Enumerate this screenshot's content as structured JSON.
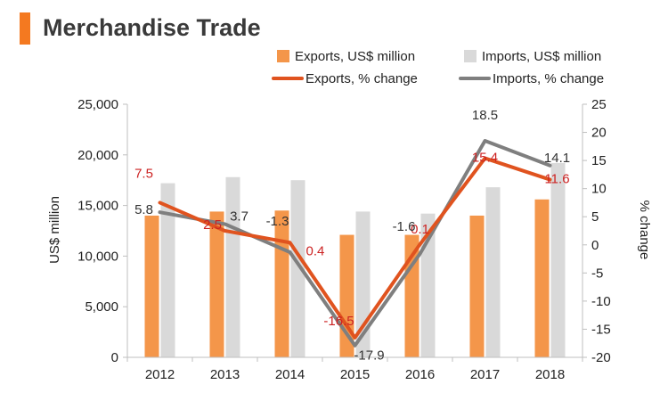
{
  "header": {
    "title": "Merchandise Trade"
  },
  "colors": {
    "accent": "#f47920",
    "exports_bar": "#f4964a",
    "imports_bar": "#d9d9d9",
    "exports_line": "#e0531f",
    "imports_line": "#7f7f7f",
    "exports_label": "#cc2222",
    "imports_label": "#333333",
    "axis": "#bfbfbf"
  },
  "chart_data": {
    "type": "bar",
    "categories": [
      "2012",
      "2013",
      "2014",
      "2015",
      "2016",
      "2017",
      "2018"
    ],
    "series": [
      {
        "name": "Exports, US$ million",
        "type": "bar",
        "axis": "left",
        "values": [
          14000,
          14400,
          14500,
          12100,
          12100,
          14000,
          15600
        ]
      },
      {
        "name": "Imports, US$ million",
        "type": "bar",
        "axis": "left",
        "values": [
          17200,
          17800,
          17500,
          14400,
          14200,
          16800,
          19200
        ]
      },
      {
        "name": "Exports, % change",
        "type": "line",
        "axis": "right",
        "values": [
          7.5,
          2.5,
          0.4,
          -16.5,
          0.1,
          15.4,
          11.6
        ],
        "labels": [
          "7.5",
          "2.5",
          "0.4",
          "-16.5",
          "0.1",
          "15.4",
          "11.6"
        ]
      },
      {
        "name": "Imports, % change",
        "type": "line",
        "axis": "right",
        "values": [
          5.8,
          3.7,
          -1.3,
          -17.9,
          -1.6,
          18.5,
          14.1
        ],
        "labels": [
          "5.8",
          "3.7",
          "-1.3",
          "-17.9",
          "-1.6",
          "18.5",
          "14.1"
        ]
      }
    ],
    "ylabel": "US$ million",
    "y2label": "% change",
    "ylim": [
      0,
      25000
    ],
    "y2lim": [
      -20,
      25
    ],
    "yticks": [
      "0",
      "5,000",
      "10,000",
      "15,000",
      "20,000",
      "25,000"
    ],
    "y2ticks": [
      "-20",
      "-15",
      "-10",
      "-5",
      "0",
      "5",
      "10",
      "15",
      "20",
      "25"
    ],
    "grid": false,
    "legend": "top"
  }
}
